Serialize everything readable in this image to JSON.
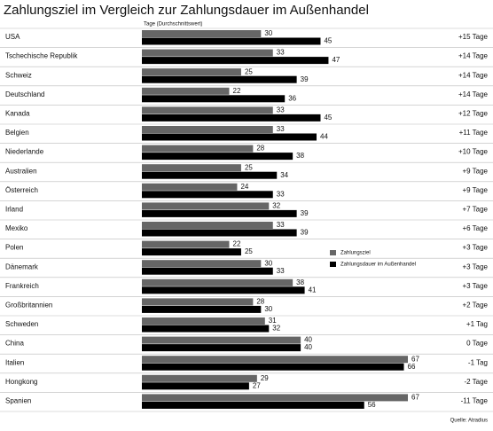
{
  "chart_data": {
    "type": "bar",
    "orientation": "horizontal",
    "title": "Zahlungsziel im Vergleich zur Zahlungsdauer im Außenhandel",
    "axis_label": "Tage (Durchschnittswert)",
    "source": "Quelle: Atradius",
    "categories": [
      "USA",
      "Tschechische Republik",
      "Schweiz",
      "Deutschland",
      "Kanada",
      "Belgien",
      "Niederlande",
      "Australien",
      "Österreich",
      "Irland",
      "Mexiko",
      "Polen",
      "Dänemark",
      "Frankreich",
      "Großbritannien",
      "Schweden",
      "China",
      "Italien",
      "Hongkong",
      "Spanien"
    ],
    "series": [
      {
        "name": "Zahlungsziel",
        "color": "#666666",
        "values": [
          30,
          33,
          25,
          22,
          33,
          33,
          28,
          25,
          24,
          32,
          33,
          22,
          30,
          38,
          28,
          31,
          40,
          67,
          29,
          67
        ]
      },
      {
        "name": "Zahlungsdauer im Außenhandel",
        "color": "#000000",
        "values": [
          45,
          47,
          39,
          36,
          45,
          44,
          38,
          34,
          33,
          39,
          39,
          25,
          33,
          41,
          30,
          32,
          40,
          66,
          27,
          56
        ]
      }
    ],
    "differences": [
      "+15 Tage",
      "+14 Tage",
      "+14 Tage",
      "+14 Tage",
      "+12 Tage",
      "+11 Tage",
      "+10 Tage",
      "+9 Tage",
      "+9 Tage",
      "+7 Tage",
      "+6 Tage",
      "+3 Tage",
      "+3 Tage",
      "+3 Tage",
      "+2 Tage",
      "+1 Tag",
      "0 Tage",
      "-1 Tag",
      "-2 Tage",
      "-11 Tage"
    ]
  }
}
